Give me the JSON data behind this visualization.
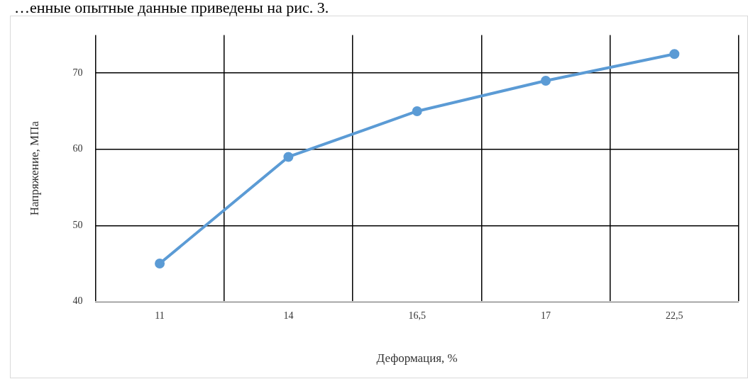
{
  "chart_data": {
    "type": "line",
    "xlabel": "Деформация, %",
    "ylabel": "Напряжение, МПа",
    "annotations": [
      "…енные опытные данные приведены на рис. 3."
    ],
    "categories": [
      "11",
      "14",
      "16,5",
      "17",
      "22,5"
    ],
    "series": [
      {
        "color": "#5b9bd5",
        "values": [
          45,
          59,
          65,
          69,
          72.5
        ]
      }
    ],
    "ylim": [
      40,
      75
    ],
    "yticks": [
      40,
      50,
      60,
      70
    ],
    "grid": true,
    "legend": false,
    "marker": "circle",
    "line_style": "solid"
  }
}
